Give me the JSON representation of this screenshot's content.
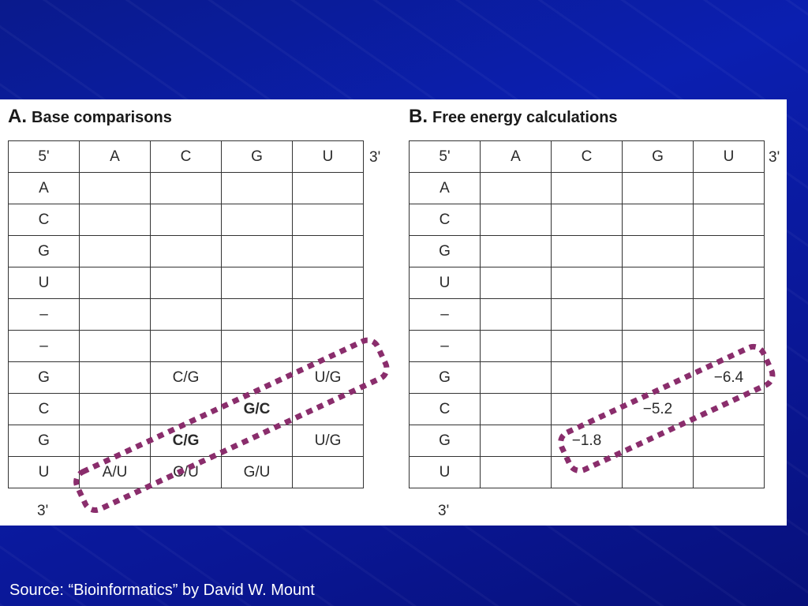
{
  "source": "Source: “Bioinformatics” by David W. Mount",
  "panel_a": {
    "letter": "A.",
    "title": "Base comparisons",
    "header": [
      "5'",
      "A",
      "C",
      "G",
      "U"
    ],
    "end_top": "3'",
    "end_bottom": "3'",
    "rows": [
      {
        "label": "A",
        "cells": [
          "",
          "",
          "",
          ""
        ]
      },
      {
        "label": "C",
        "cells": [
          "",
          "",
          "",
          ""
        ]
      },
      {
        "label": "G",
        "cells": [
          "",
          "",
          "",
          ""
        ]
      },
      {
        "label": "U",
        "cells": [
          "",
          "",
          "",
          ""
        ]
      },
      {
        "label": "–",
        "cells": [
          "",
          "",
          "",
          ""
        ]
      },
      {
        "label": "–",
        "cells": [
          "",
          "",
          "",
          ""
        ]
      },
      {
        "label": "G",
        "cells": [
          "",
          "C/G",
          "",
          "U/G"
        ]
      },
      {
        "label": "C",
        "cells": [
          "",
          "",
          "G/C",
          ""
        ]
      },
      {
        "label": "G",
        "cells": [
          "",
          "C/G",
          "",
          "U/G"
        ]
      },
      {
        "label": "U",
        "cells": [
          "A/U",
          "C/U",
          "G/U",
          ""
        ]
      }
    ],
    "highlight_color": "#8a2d6c"
  },
  "panel_b": {
    "letter": "B.",
    "title": "Free energy calculations",
    "header": [
      "5'",
      "A",
      "C",
      "G",
      "U"
    ],
    "end_top": "3'",
    "end_bottom": "3'",
    "rows": [
      {
        "label": "A",
        "cells": [
          "",
          "",
          "",
          ""
        ]
      },
      {
        "label": "C",
        "cells": [
          "",
          "",
          "",
          ""
        ]
      },
      {
        "label": "G",
        "cells": [
          "",
          "",
          "",
          ""
        ]
      },
      {
        "label": "U",
        "cells": [
          "",
          "",
          "",
          ""
        ]
      },
      {
        "label": "–",
        "cells": [
          "",
          "",
          "",
          ""
        ]
      },
      {
        "label": "–",
        "cells": [
          "",
          "",
          "",
          ""
        ]
      },
      {
        "label": "G",
        "cells": [
          "",
          "",
          "",
          "−6.4"
        ]
      },
      {
        "label": "C",
        "cells": [
          "",
          "",
          "−5.2",
          ""
        ]
      },
      {
        "label": "G",
        "cells": [
          "",
          "−1.8",
          "",
          ""
        ]
      },
      {
        "label": "U",
        "cells": [
          "",
          "",
          "",
          ""
        ]
      }
    ],
    "highlight_color": "#8a2d6c"
  }
}
